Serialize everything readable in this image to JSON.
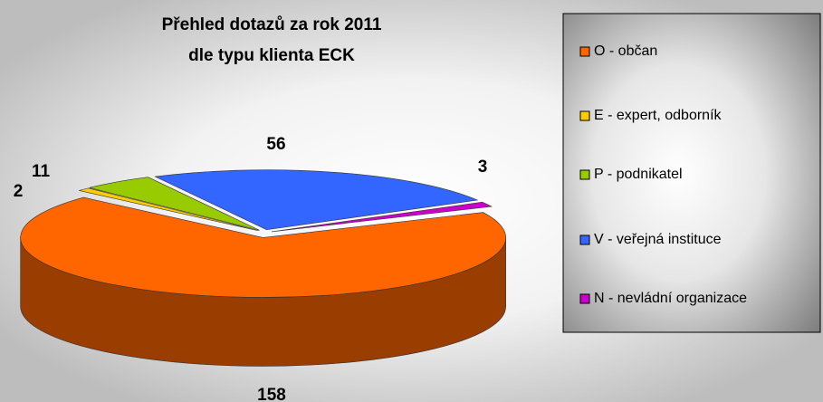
{
  "chart_data": {
    "type": "pie3d",
    "title": "Přehled dotazů za rok 2011",
    "subtitle": "dle typu klienta ECK",
    "categories": [
      "O - občan",
      "E - expert, odborník",
      "P - podnikatel",
      "V - veřejná instituce",
      "N - nevládní organizace"
    ],
    "values": [
      158,
      2,
      11,
      56,
      3
    ],
    "colors": [
      "#ff6600",
      "#ffcc00",
      "#99cc00",
      "#3366ff",
      "#cc00cc"
    ],
    "legend": "right"
  }
}
